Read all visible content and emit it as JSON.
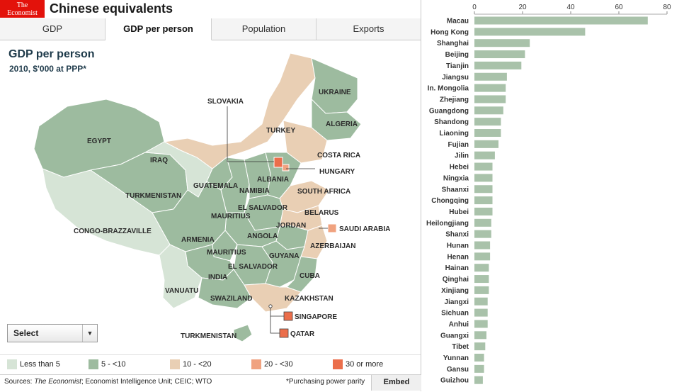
{
  "header": {
    "logo_line1": "The",
    "logo_line2": "Economist",
    "title": "Chinese equivalents"
  },
  "tabs": [
    {
      "label": "GDP",
      "active": false
    },
    {
      "label": "GDP per person",
      "active": true
    },
    {
      "label": "Population",
      "active": false
    },
    {
      "label": "Exports",
      "active": false
    }
  ],
  "map": {
    "title": "GDP per person",
    "subtitle": "2010, $'000 at PPP*",
    "labels": [
      "UKRAINE",
      "SLOVAKIA",
      "TURKEY",
      "ALGERIA",
      "EGYPT",
      "IRAQ",
      "COSTA RICA",
      "HUNGARY",
      "ALBANIA",
      "GUATEMALA",
      "NAMIBIA",
      "SOUTH AFRICA",
      "TURKMENISTAN",
      "EL SALVADOR",
      "BELARUS",
      "MAURITIUS",
      "SAUDI ARABIA",
      "JORDAN",
      "CONGO-BRAZZAVILLE",
      "ARMENIA",
      "ANGOLA",
      "AZERBAIJAN",
      "MAURITIUS",
      "GUYANA",
      "EL SALVADOR",
      "CUBA",
      "INDIA",
      "VANUATU",
      "SWAZILAND",
      "KAZAKHSTAN",
      "SINGAPORE",
      "QATAR",
      "TURKMENISTAN"
    ],
    "colors": {
      "lt5": "#d6e4d6",
      "c5_10": "#9dbb9f",
      "c10_20": "#e9cfb4",
      "c20_30": "#f0a27f",
      "c30p": "#eb6e4b"
    }
  },
  "select": {
    "label": "Select"
  },
  "legend": [
    {
      "label": "Less than 5",
      "color": "#d6e4d6"
    },
    {
      "label": "5 - <10",
      "color": "#9dbb9f"
    },
    {
      "label": "10 - <20",
      "color": "#e9cfb4"
    },
    {
      "label": "20 - <30",
      "color": "#f0a27f"
    },
    {
      "label": "30 or more",
      "color": "#eb6e4b"
    }
  ],
  "footer": {
    "sources_prefix": "Sources: ",
    "sources_source": "The Economist",
    "sources_rest": "; Economist Intelligence Unit; CEIC; WTO",
    "ppp_note": "*Purchasing power parity",
    "embed": "Embed"
  },
  "chart_data": {
    "type": "bar",
    "orientation": "horizontal",
    "categories": [
      "Macau",
      "Hong Kong",
      "Shanghai",
      "Beijing",
      "Tianjin",
      "Jiangsu",
      "In. Mongolia",
      "Zhejiang",
      "Guangdong",
      "Shandong",
      "Liaoning",
      "Fujian",
      "Jilin",
      "Hebei",
      "Ningxia",
      "Shaanxi",
      "Chongqing",
      "Hubei",
      "Heilongjiang",
      "Shanxi",
      "Hunan",
      "Henan",
      "Hainan",
      "Qinghai",
      "Xinjiang",
      "Jiangxi",
      "Sichuan",
      "Anhui",
      "Guangxi",
      "Tibet",
      "Yunnan",
      "Gansu",
      "Guizhou"
    ],
    "values": [
      72,
      46,
      23,
      21,
      19.5,
      13.5,
      13,
      13,
      12,
      11,
      11,
      10,
      8.5,
      7.5,
      7.5,
      7.5,
      7.5,
      7.5,
      7,
      7,
      6.5,
      6.5,
      6,
      6,
      6,
      5.5,
      5.5,
      5.5,
      5,
      4.5,
      4,
      4,
      3.5
    ],
    "xticks": [
      0,
      20,
      40,
      60,
      80
    ],
    "xlim": [
      0,
      80
    ],
    "bar_color": "#a9c2aa"
  }
}
